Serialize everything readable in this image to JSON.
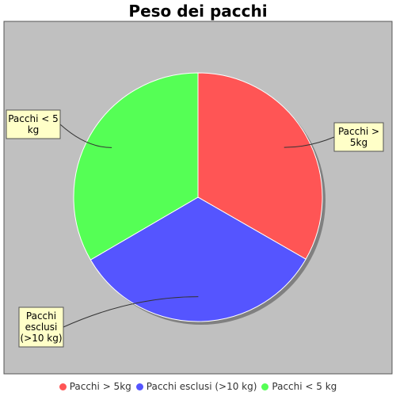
{
  "chart_data": {
    "type": "pie",
    "title": "Peso dei pacchi",
    "slices": [
      {
        "label": "Pacchi > 5kg",
        "callout": [
          "Pacchi >",
          "5kg"
        ],
        "value": 33.3,
        "color": "#ff5555"
      },
      {
        "label": "Pacchi esclusi (>10 kg)",
        "callout": [
          "Pacchi",
          "esclusi",
          "(>10 kg)"
        ],
        "value": 33.3,
        "color": "#5555ff"
      },
      {
        "label": "Pacchi < 5 kg",
        "callout": [
          "Pacchi < 5",
          "kg"
        ],
        "value": 33.4,
        "color": "#55ff55"
      }
    ],
    "legend_position": "bottom",
    "background": "#c0c0c0"
  }
}
